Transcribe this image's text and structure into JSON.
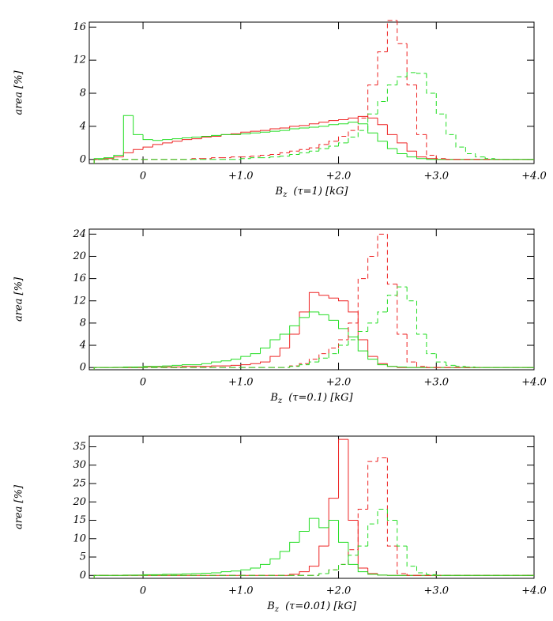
{
  "chart_data": [
    {
      "type": "histogram",
      "ylabel": "area [%]",
      "xlabel_symbol": "B",
      "xlabel_subscript": "z",
      "xlabel_text": "(τ=1) [kG]",
      "xlim": [
        -0.55,
        4.0
      ],
      "ylim": [
        -0.5,
        16.6
      ],
      "xticks": [
        0,
        {
          "value": 1,
          "label": "+1.0"
        },
        {
          "value": 2,
          "label": "+2.0"
        },
        {
          "value": 3,
          "label": "+3.0"
        },
        {
          "value": 4,
          "label": "+4.0"
        }
      ],
      "yticks": [
        0,
        4,
        8,
        12,
        16
      ],
      "bins": [
        -0.5,
        -0.4,
        -0.3,
        -0.2,
        -0.1,
        0,
        0.1,
        0.2,
        0.3,
        0.4,
        0.5,
        0.6,
        0.7,
        0.8,
        0.9,
        1.0,
        1.1,
        1.2,
        1.3,
        1.4,
        1.5,
        1.6,
        1.7,
        1.8,
        1.9,
        2.0,
        2.1,
        2.2,
        2.3,
        2.4,
        2.5,
        2.6,
        2.7,
        2.8,
        2.9,
        3.0,
        3.1,
        3.2,
        3.3,
        3.4,
        3.5,
        3.6,
        3.7,
        3.8,
        3.9,
        4.0
      ],
      "series": [
        {
          "color": "#ee2222",
          "line_style": "solid",
          "values": [
            0,
            0.1,
            0.3,
            0.8,
            1.2,
            1.5,
            1.8,
            2.0,
            2.2,
            2.4,
            2.5,
            2.7,
            2.8,
            3.0,
            3.1,
            3.3,
            3.4,
            3.5,
            3.7,
            3.8,
            4.0,
            4.1,
            4.3,
            4.5,
            4.7,
            4.8,
            5.0,
            5.2,
            5.0,
            4.2,
            3.0,
            2.0,
            1.0,
            0.3,
            0.1,
            0,
            0,
            0,
            0,
            0,
            0,
            0,
            0,
            0,
            0
          ]
        },
        {
          "color": "#22dd22",
          "line_style": "solid",
          "values": [
            0.1,
            0.2,
            0.5,
            5.3,
            3.0,
            2.4,
            2.3,
            2.4,
            2.5,
            2.6,
            2.7,
            2.8,
            2.9,
            3.0,
            3.0,
            3.1,
            3.2,
            3.3,
            3.4,
            3.5,
            3.7,
            3.8,
            3.9,
            4.0,
            4.2,
            4.3,
            4.5,
            4.3,
            3.2,
            2.2,
            1.3,
            0.7,
            0.3,
            0.1,
            0,
            0,
            0,
            0,
            0,
            0,
            0,
            0,
            0,
            0,
            0
          ]
        },
        {
          "color": "#ee2222",
          "line_style": "dashed",
          "values": [
            0,
            0,
            0,
            0,
            0,
            0,
            0,
            0,
            0,
            0,
            0.1,
            0.1,
            0.2,
            0.2,
            0.3,
            0.3,
            0.4,
            0.5,
            0.6,
            0.8,
            1.0,
            1.2,
            1.4,
            1.8,
            2.2,
            2.8,
            3.5,
            5,
            9,
            13,
            16.8,
            14,
            9,
            3,
            0.5,
            0.1,
            0,
            0,
            0,
            0,
            0,
            0,
            0,
            0,
            0
          ]
        },
        {
          "color": "#22dd22",
          "line_style": "dashed",
          "values": [
            0,
            0,
            0,
            0,
            0,
            0,
            0,
            0,
            0,
            0,
            0,
            0,
            0,
            0,
            0,
            0.1,
            0.2,
            0.2,
            0.3,
            0.4,
            0.6,
            0.8,
            1.0,
            1.3,
            1.6,
            2.0,
            2.7,
            3.5,
            5.5,
            7,
            9,
            10,
            10.5,
            10.4,
            8,
            5.5,
            3,
            1.5,
            0.7,
            0.3,
            0.1,
            0,
            0,
            0,
            0
          ]
        }
      ]
    },
    {
      "type": "histogram",
      "ylabel": "area [%]",
      "xlabel_symbol": "B",
      "xlabel_subscript": "z",
      "xlabel_text": "(τ=0.1) [kG]",
      "xlim": [
        -0.55,
        4.0
      ],
      "ylim": [
        -0.4,
        24.9
      ],
      "xticks": [
        0,
        {
          "value": 1,
          "label": "+1.0"
        },
        {
          "value": 2,
          "label": "+2.0"
        },
        {
          "value": 3,
          "label": "+3.0"
        },
        {
          "value": 4,
          "label": "+4.0"
        }
      ],
      "yticks": [
        0,
        4,
        8,
        12,
        16,
        20,
        24
      ],
      "bins": [
        -0.5,
        -0.4,
        -0.3,
        -0.2,
        -0.1,
        0,
        0.1,
        0.2,
        0.3,
        0.4,
        0.5,
        0.6,
        0.7,
        0.8,
        0.9,
        1.0,
        1.1,
        1.2,
        1.3,
        1.4,
        1.5,
        1.6,
        1.7,
        1.8,
        1.9,
        2.0,
        2.1,
        2.2,
        2.3,
        2.4,
        2.5,
        2.6,
        2.7,
        2.8,
        2.9,
        3.0,
        3.1,
        3.2,
        3.3,
        3.4,
        3.5,
        3.6,
        3.7,
        3.8,
        3.9,
        4.0
      ],
      "series": [
        {
          "color": "#ee2222",
          "line_style": "solid",
          "values": [
            0,
            0,
            0,
            0,
            0,
            0.1,
            0.1,
            0.1,
            0.1,
            0.2,
            0.2,
            0.2,
            0.3,
            0.3,
            0.4,
            0.5,
            0.7,
            1,
            2,
            3.5,
            6,
            10,
            13.5,
            13,
            12.5,
            12,
            10,
            5,
            2,
            0.7,
            0.2,
            0,
            0,
            0,
            0,
            0,
            0,
            0,
            0,
            0,
            0,
            0,
            0,
            0,
            0
          ]
        },
        {
          "color": "#22dd22",
          "line_style": "solid",
          "values": [
            0,
            0,
            0.05,
            0.1,
            0.1,
            0.2,
            0.2,
            0.3,
            0.4,
            0.5,
            0.5,
            0.7,
            1,
            1.2,
            1.5,
            2,
            2.5,
            3.5,
            5,
            6,
            7.5,
            9,
            10,
            9.5,
            8.5,
            7,
            5.5,
            3,
            1.5,
            0.5,
            0.2,
            0.1,
            0,
            0,
            0,
            0,
            0,
            0,
            0,
            0,
            0,
            0,
            0,
            0,
            0
          ]
        },
        {
          "color": "#ee2222",
          "line_style": "dashed",
          "values": [
            0,
            0,
            0,
            0,
            0,
            0,
            0,
            0,
            0,
            0,
            0,
            0,
            0,
            0,
            0,
            0,
            0,
            0,
            0,
            0,
            0.3,
            0.7,
            1.5,
            2.5,
            3.5,
            5,
            8,
            16,
            20,
            24,
            15,
            6,
            1,
            0.2,
            0,
            0,
            0,
            0,
            0,
            0,
            0,
            0,
            0,
            0,
            0
          ]
        },
        {
          "color": "#22dd22",
          "line_style": "dashed",
          "values": [
            0,
            0,
            0,
            0,
            0,
            0,
            0,
            0,
            0,
            0,
            0,
            0,
            0,
            0,
            0,
            0,
            0,
            0,
            0,
            0,
            0.2,
            0.5,
            1,
            1.7,
            2.5,
            4,
            5,
            6.5,
            8,
            10,
            13,
            14.5,
            12,
            6,
            2.5,
            1,
            0.4,
            0.2,
            0.1,
            0,
            0,
            0,
            0,
            0,
            0
          ]
        }
      ]
    },
    {
      "type": "histogram",
      "ylabel": "area [%]",
      "xlabel_symbol": "B",
      "xlabel_subscript": "z",
      "xlabel_text": "(τ=0.01) [kG]",
      "xlim": [
        -0.55,
        4.0
      ],
      "ylim": [
        -0.8,
        37.9
      ],
      "xticks": [
        0,
        {
          "value": 1,
          "label": "+1.0"
        },
        {
          "value": 2,
          "label": "+2.0"
        },
        {
          "value": 3,
          "label": "+3.0"
        },
        {
          "value": 4,
          "label": "+4.0"
        }
      ],
      "yticks": [
        0,
        5,
        10,
        15,
        20,
        25,
        30,
        35
      ],
      "bins": [
        -0.5,
        -0.4,
        -0.3,
        -0.2,
        -0.1,
        0,
        0.1,
        0.2,
        0.3,
        0.4,
        0.5,
        0.6,
        0.7,
        0.8,
        0.9,
        1.0,
        1.1,
        1.2,
        1.3,
        1.4,
        1.5,
        1.6,
        1.7,
        1.8,
        1.9,
        2.0,
        2.1,
        2.2,
        2.3,
        2.4,
        2.5,
        2.6,
        2.7,
        2.8,
        2.9,
        3.0,
        3.1,
        3.2,
        3.3,
        3.4,
        3.5,
        3.6,
        3.7,
        3.8,
        3.9,
        4.0
      ],
      "series": [
        {
          "color": "#ee2222",
          "line_style": "solid",
          "values": [
            0,
            0,
            0,
            0,
            0,
            0,
            0,
            0,
            0,
            0,
            0,
            0,
            0,
            0,
            0,
            0,
            0,
            0,
            0,
            0,
            0.3,
            1,
            2.5,
            8,
            21,
            37,
            15,
            2,
            0.5,
            0.1,
            0,
            0,
            0,
            0,
            0,
            0,
            0,
            0,
            0,
            0,
            0,
            0,
            0,
            0,
            0
          ]
        },
        {
          "color": "#22dd22",
          "line_style": "solid",
          "values": [
            0,
            0,
            0,
            0.1,
            0.1,
            0.2,
            0.2,
            0.3,
            0.3,
            0.4,
            0.5,
            0.6,
            0.7,
            1,
            1.2,
            1.5,
            2,
            3,
            4.5,
            6.5,
            9,
            12,
            15.5,
            13,
            15,
            9,
            3,
            1,
            0.3,
            0.1,
            0,
            0,
            0,
            0,
            0,
            0,
            0,
            0,
            0,
            0,
            0,
            0,
            0,
            0,
            0
          ]
        },
        {
          "color": "#ee2222",
          "line_style": "dashed",
          "values": [
            0,
            0,
            0,
            0,
            0,
            0,
            0,
            0,
            0,
            0,
            0,
            0,
            0,
            0,
            0,
            0,
            0,
            0,
            0,
            0,
            0,
            0,
            0,
            0.5,
            1.5,
            3,
            7,
            18,
            31,
            32,
            8,
            0.5,
            0,
            0,
            0,
            0,
            0,
            0,
            0,
            0,
            0,
            0,
            0,
            0,
            0
          ]
        },
        {
          "color": "#22dd22",
          "line_style": "dashed",
          "values": [
            0,
            0,
            0,
            0,
            0,
            0,
            0,
            0,
            0,
            0,
            0,
            0,
            0,
            0,
            0,
            0,
            0,
            0,
            0,
            0,
            0,
            0,
            0,
            0.5,
            1.5,
            3,
            5.5,
            8,
            14,
            18,
            15,
            8,
            2.5,
            0.7,
            0.2,
            0,
            0,
            0,
            0,
            0,
            0,
            0,
            0,
            0,
            0
          ]
        }
      ]
    }
  ]
}
